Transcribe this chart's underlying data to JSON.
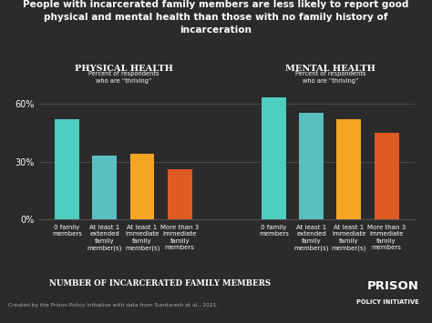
{
  "title": "People with incarcerated family members are less likely to report good\nphysical and mental health than those with no family history of\nincarceration",
  "background_color": "#2b2b2b",
  "text_color": "#ffffff",
  "footer_text_color": "#aaaaaa",
  "physical_label": "Physical health",
  "physical_sublabel": "Percent of respondents\nwho are “thriving”",
  "mental_label": "Mental health",
  "mental_sublabel": "Percent of respondents\nwho are “thriving”",
  "xlabel": "Number of incarcerated family members",
  "footer": "Created by the Prison Policy Initiative with data from Sundaresh et al., 2021.",
  "physical_values": [
    52,
    33,
    34,
    26
  ],
  "mental_values": [
    63,
    55,
    52,
    45
  ],
  "bar_colors": [
    "#4ecdc0",
    "#5abfbf",
    "#f5a623",
    "#e05a23"
  ],
  "x_labels": [
    "0 family\nmembers",
    "At least 1\nextended\nfamily\nmember(s)",
    "At least 1\nimmediate\nfamily\nmember(s)",
    "More than 3\nimmediate\nfamily\nmembers"
  ],
  "ylim": [
    0,
    70
  ],
  "yticks": [
    0,
    30,
    60
  ],
  "ytick_labels": [
    "0%",
    "30%",
    "60%"
  ],
  "grid_color": "#555555",
  "bar_width": 0.65
}
